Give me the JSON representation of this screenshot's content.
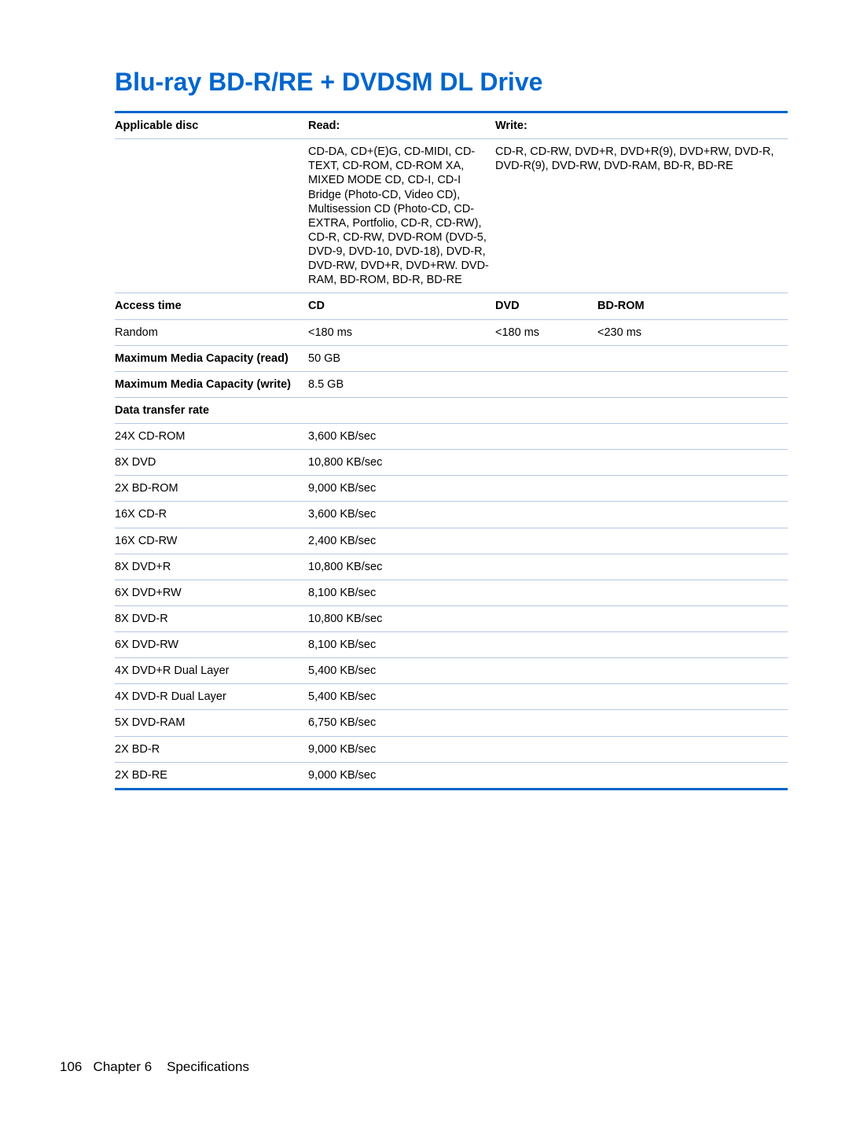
{
  "title": "Blu-ray BD-R/RE + DVDSM DL Drive",
  "accent_color": "#0066cc",
  "row_border_color": "#b3c7e6",
  "background_color": "#ffffff",
  "text_color": "#000000",
  "title_fontsize": 32,
  "body_fontsize": 14.5,
  "header": {
    "label": "Applicable disc",
    "read_label": "Read:",
    "write_label": "Write:"
  },
  "applicable": {
    "read": "CD-DA, CD+(E)G, CD-MIDI, CD-TEXT, CD-ROM, CD-ROM XA, MIXED MODE CD, CD-I, CD-I Bridge (Photo-CD, Video CD), Multisession CD (Photo-CD, CD-EXTRA, Portfolio, CD-R, CD-RW), CD-R, CD-RW, DVD-ROM (DVD-5, DVD-9, DVD-10, DVD-18), DVD-R, DVD-RW, DVD+R, DVD+RW. DVD-RAM, BD-ROM, BD-R, BD-RE",
    "write": "CD-R, CD-RW, DVD+R, DVD+R(9), DVD+RW, DVD-R, DVD-R(9), DVD-RW, DVD-RAM, BD-R, BD-RE"
  },
  "access": {
    "label": "Access time",
    "cd_label": "CD",
    "dvd_label": "DVD",
    "bdrom_label": "BD-ROM",
    "random_label": "Random",
    "random_cd": "<180 ms",
    "random_dvd": "<180 ms",
    "random_bdrom": "<230 ms"
  },
  "max_read": {
    "label": "Maximum Media Capacity (read)",
    "value": "50 GB"
  },
  "max_write": {
    "label": "Maximum Media Capacity (write)",
    "value": "8.5 GB"
  },
  "rate_header": "Data transfer rate",
  "rates": [
    {
      "name": "24X CD-ROM",
      "value": "3,600 KB/sec"
    },
    {
      "name": "8X DVD",
      "value": "10,800 KB/sec"
    },
    {
      "name": "2X BD-ROM",
      "value": "9,000 KB/sec"
    },
    {
      "name": "16X CD-R",
      "value": "3,600 KB/sec"
    },
    {
      "name": "16X CD-RW",
      "value": "2,400 KB/sec"
    },
    {
      "name": "8X DVD+R",
      "value": "10,800 KB/sec"
    },
    {
      "name": "6X DVD+RW",
      "value": "8,100 KB/sec"
    },
    {
      "name": "8X DVD-R",
      "value": "10,800 KB/sec"
    },
    {
      "name": "6X DVD-RW",
      "value": "8,100 KB/sec"
    },
    {
      "name": "4X DVD+R Dual Layer",
      "value": "5,400 KB/sec"
    },
    {
      "name": "4X DVD-R Dual Layer",
      "value": "5,400 KB/sec"
    },
    {
      "name": "5X DVD-RAM",
      "value": "6,750 KB/sec"
    },
    {
      "name": "2X BD-R",
      "value": "9,000 KB/sec"
    },
    {
      "name": "2X BD-RE",
      "value": "9,000 KB/sec"
    }
  ],
  "footer": {
    "page_number": "106",
    "chapter": "Chapter 6",
    "section": "Specifications"
  }
}
